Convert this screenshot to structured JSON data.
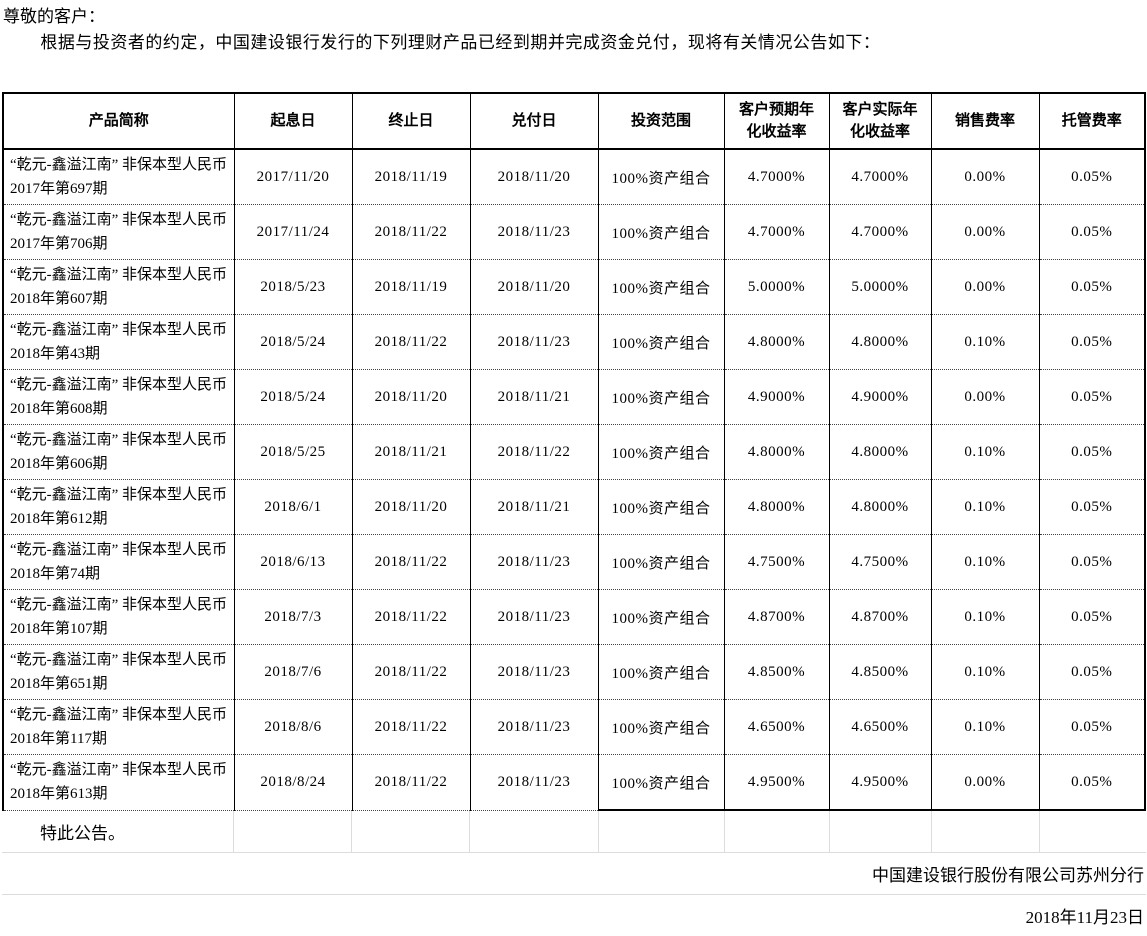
{
  "intro": {
    "salutation": "尊敬的客户：",
    "body": "根据与投资者的约定，中国建设银行发行的下列理财产品已经到期并完成资金兑付，现将有关情况公告如下："
  },
  "table": {
    "headers": [
      "产品简称",
      "起息日",
      "终止日",
      "兑付日",
      "投资范围",
      "客户预期年\n化收益率",
      "客户实际年\n化收益率",
      "销售费率",
      "托管费率"
    ],
    "rows": [
      [
        "“乾元-鑫溢江南” 非保本型人民币2017年第697期",
        "2017/11/20",
        "2018/11/19",
        "2018/11/20",
        "100%资产组合",
        "4.7000%",
        "4.7000%",
        "0.00%",
        "0.05%"
      ],
      [
        "“乾元-鑫溢江南” 非保本型人民币2017年第706期",
        "2017/11/24",
        "2018/11/22",
        "2018/11/23",
        "100%资产组合",
        "4.7000%",
        "4.7000%",
        "0.00%",
        "0.05%"
      ],
      [
        "“乾元-鑫溢江南” 非保本型人民币2018年第607期",
        "2018/5/23",
        "2018/11/19",
        "2018/11/20",
        "100%资产组合",
        "5.0000%",
        "5.0000%",
        "0.00%",
        "0.05%"
      ],
      [
        "“乾元-鑫溢江南” 非保本型人民币2018年第43期",
        "2018/5/24",
        "2018/11/22",
        "2018/11/23",
        "100%资产组合",
        "4.8000%",
        "4.8000%",
        "0.10%",
        "0.05%"
      ],
      [
        "“乾元-鑫溢江南” 非保本型人民币2018年第608期",
        "2018/5/24",
        "2018/11/20",
        "2018/11/21",
        "100%资产组合",
        "4.9000%",
        "4.9000%",
        "0.00%",
        "0.05%"
      ],
      [
        "“乾元-鑫溢江南” 非保本型人民币2018年第606期",
        "2018/5/25",
        "2018/11/21",
        "2018/11/22",
        "100%资产组合",
        "4.8000%",
        "4.8000%",
        "0.10%",
        "0.05%"
      ],
      [
        "“乾元-鑫溢江南” 非保本型人民币2018年第612期",
        "2018/6/1",
        "2018/11/20",
        "2018/11/21",
        "100%资产组合",
        "4.8000%",
        "4.8000%",
        "0.10%",
        "0.05%"
      ],
      [
        "“乾元-鑫溢江南” 非保本型人民币2018年第74期",
        "2018/6/13",
        "2018/11/22",
        "2018/11/23",
        "100%资产组合",
        "4.7500%",
        "4.7500%",
        "0.10%",
        "0.05%"
      ],
      [
        "“乾元-鑫溢江南” 非保本型人民币2018年第107期",
        "2018/7/3",
        "2018/11/22",
        "2018/11/23",
        "100%资产组合",
        "4.8700%",
        "4.8700%",
        "0.10%",
        "0.05%"
      ],
      [
        "“乾元-鑫溢江南” 非保本型人民币2018年第651期",
        "2018/7/6",
        "2018/11/22",
        "2018/11/23",
        "100%资产组合",
        "4.8500%",
        "4.8500%",
        "0.10%",
        "0.05%"
      ],
      [
        "“乾元-鑫溢江南” 非保本型人民币2018年第117期",
        "2018/8/6",
        "2018/11/22",
        "2018/11/23",
        "100%资产组合",
        "4.6500%",
        "4.6500%",
        "0.10%",
        "0.05%"
      ],
      [
        "“乾元-鑫溢江南” 非保本型人民币2018年第613期",
        "2018/8/24",
        "2018/11/22",
        "2018/11/23",
        "100%资产组合",
        "4.9500%",
        "4.9500%",
        "0.00%",
        "0.05%"
      ]
    ]
  },
  "footer": {
    "closing": "特此公告。",
    "company": "中国建设银行股份有限公司苏州分行",
    "date": "2018年11月23日"
  }
}
